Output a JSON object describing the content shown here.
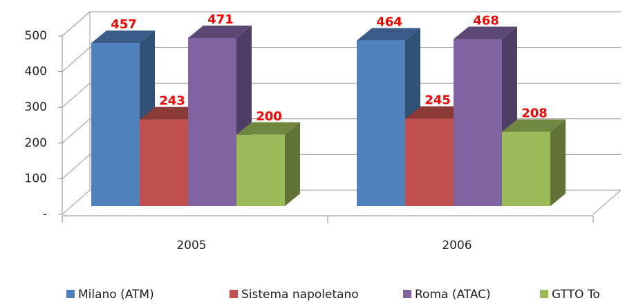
{
  "chart_data": {
    "type": "bar3d",
    "categories": [
      "2005",
      "2006"
    ],
    "series": [
      {
        "name": "Milano (ATM)",
        "color": "#4f81bd",
        "values": [
          457,
          464
        ]
      },
      {
        "name": "Sistema napoletano",
        "color": "#c0504d",
        "values": [
          243,
          245
        ]
      },
      {
        "name": "Roma (ATAC)",
        "color": "#8064a2",
        "values": [
          471,
          468
        ]
      },
      {
        "name": "GTTO To",
        "color": "#9bbb59",
        "values": [
          200,
          208
        ]
      }
    ],
    "ylim": [
      0,
      500
    ],
    "yticks": [
      {
        "value": 0,
        "label": "-"
      },
      100,
      200,
      300,
      400,
      500
    ],
    "grid": true,
    "legend": "bottom"
  }
}
